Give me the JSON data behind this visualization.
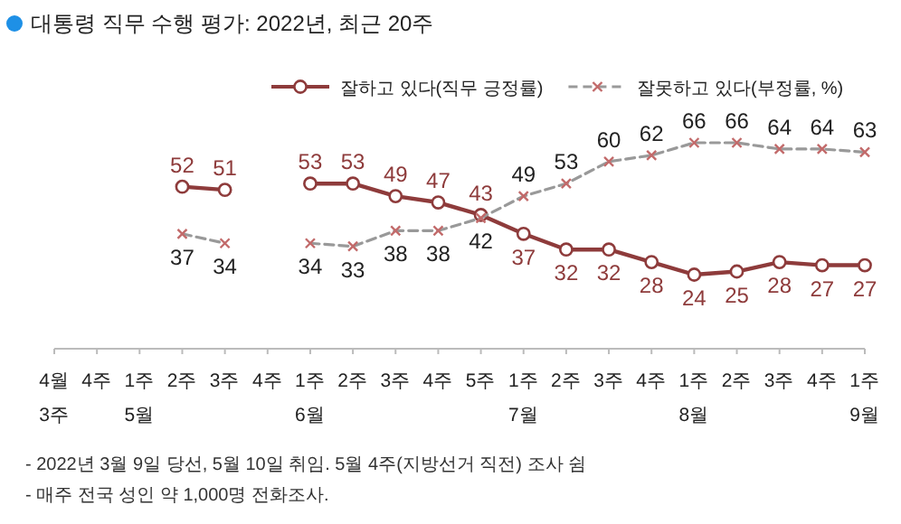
{
  "chart_data": {
    "type": "line",
    "title": "대통령 직무 수행 평가: 2022년, 최근 20주",
    "categories": [
      "4월\n3주",
      "4주",
      "1주\n5월",
      "2주",
      "3주",
      "4주",
      "1주\n6월",
      "2주",
      "3주",
      "4주",
      "5주",
      "1주\n7월",
      "2주",
      "3주",
      "4주",
      "1주\n8월",
      "2주",
      "3주",
      "4주",
      "1주\n9월"
    ],
    "series": [
      {
        "name": "잘하고 있다(직무 긍정률)",
        "color": "#8e3b3b",
        "marker": "circle",
        "line_style": "solid",
        "values": [
          null,
          null,
          null,
          52,
          51,
          null,
          53,
          53,
          49,
          47,
          43,
          37,
          32,
          32,
          28,
          24,
          25,
          28,
          27,
          27
        ]
      },
      {
        "name": "잘못하고 있다(부정률, %)",
        "color": "#999999",
        "marker": "cross",
        "line_style": "dashed",
        "values": [
          null,
          null,
          null,
          37,
          34,
          null,
          34,
          33,
          38,
          38,
          42,
          49,
          53,
          60,
          62,
          66,
          66,
          64,
          64,
          63
        ]
      }
    ],
    "data_labels": true,
    "legend": "top right",
    "annotations": [
      "- 2022년 3월 9일 당선, 5월 10일 취임. 5월 4주(지방선거 직전) 조사 쉼",
      "- 매주 전국 성인 약 1,000명 전화조사."
    ]
  }
}
